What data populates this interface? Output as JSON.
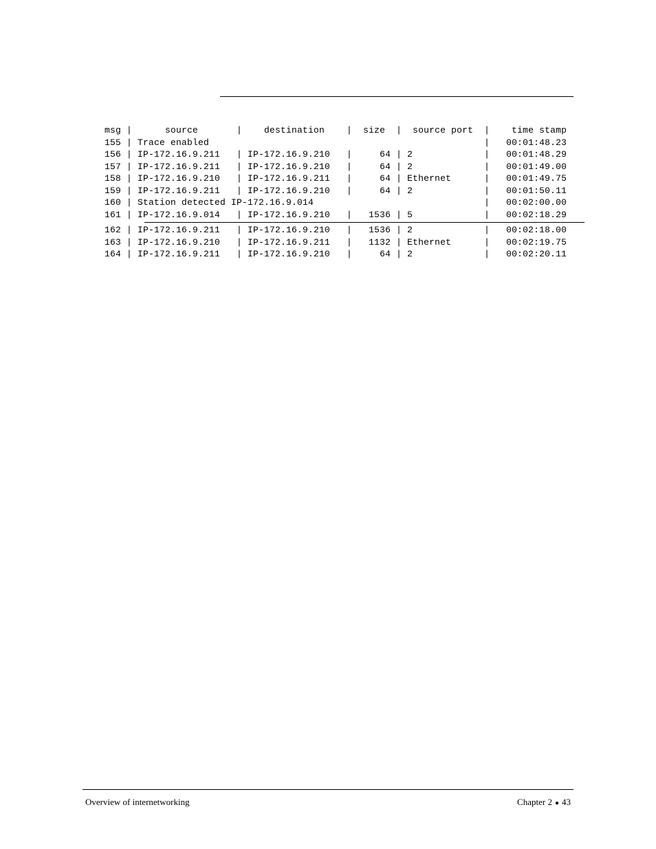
{
  "trace": {
    "header": {
      "msg": "msg",
      "source": "source",
      "destination": "destination",
      "size": "size",
      "source_port": "source port",
      "time_stamp": "time stamp"
    },
    "rows_top": [
      {
        "msg": "155",
        "text": "Trace enabled",
        "time_stamp": "00:01:48.23"
      },
      {
        "msg": "156",
        "source": "IP-172.16.9.211",
        "destination": "IP-172.16.9.210",
        "size": "64",
        "source_port": "2",
        "time_stamp": "00:01:48.29"
      },
      {
        "msg": "157",
        "source": "IP-172.16.9.211",
        "destination": "IP-172.16.9.210",
        "size": "64",
        "source_port": "2",
        "time_stamp": "00:01:49.00"
      },
      {
        "msg": "158",
        "source": "IP-172.16.9.210",
        "destination": "IP-172.16.9.211",
        "size": "64",
        "source_port": "Ethernet",
        "time_stamp": "00:01:49.75"
      },
      {
        "msg": "159",
        "source": "IP-172.16.9.211",
        "destination": "IP-172.16.9.210",
        "size": "64",
        "source_port": "2",
        "time_stamp": "00:01:50.11"
      },
      {
        "msg": "160",
        "text": "Station detected IP-172.16.9.014",
        "time_stamp": "00:02:00.00"
      },
      {
        "msg": "161",
        "source": "IP-172.16.9.014",
        "destination": "IP-172.16.9.210",
        "size": "1536",
        "source_port": "5",
        "time_stamp": "00:02:18.29"
      }
    ],
    "rows_bottom": [
      {
        "msg": "162",
        "source": "IP-172.16.9.211",
        "destination": "IP-172.16.9.210",
        "size": "1536",
        "source_port": "2",
        "time_stamp": "00:02:18.00"
      },
      {
        "msg": "163",
        "source": "IP-172.16.9.210",
        "destination": "IP-172.16.9.211",
        "size": "1132",
        "source_port": "Ethernet",
        "time_stamp": "00:02:19.75"
      },
      {
        "msg": "164",
        "source": "IP-172.16.9.211",
        "destination": "IP-172.16.9.210",
        "size": "64",
        "source_port": "2",
        "time_stamp": "00:02:20.11"
      }
    ],
    "col_widths": {
      "msg": 5,
      "source": 17,
      "destination": 17,
      "size": 6,
      "source_port": 13,
      "time_stamp": 13
    }
  },
  "footer": {
    "left": "Overview of internetworking",
    "chapter": "Chapter 2",
    "page": "43"
  },
  "colors": {
    "text": "#000000",
    "background": "#ffffff"
  },
  "font": {
    "mono": "Courier New",
    "serif": "Georgia",
    "size_pt": 10
  }
}
